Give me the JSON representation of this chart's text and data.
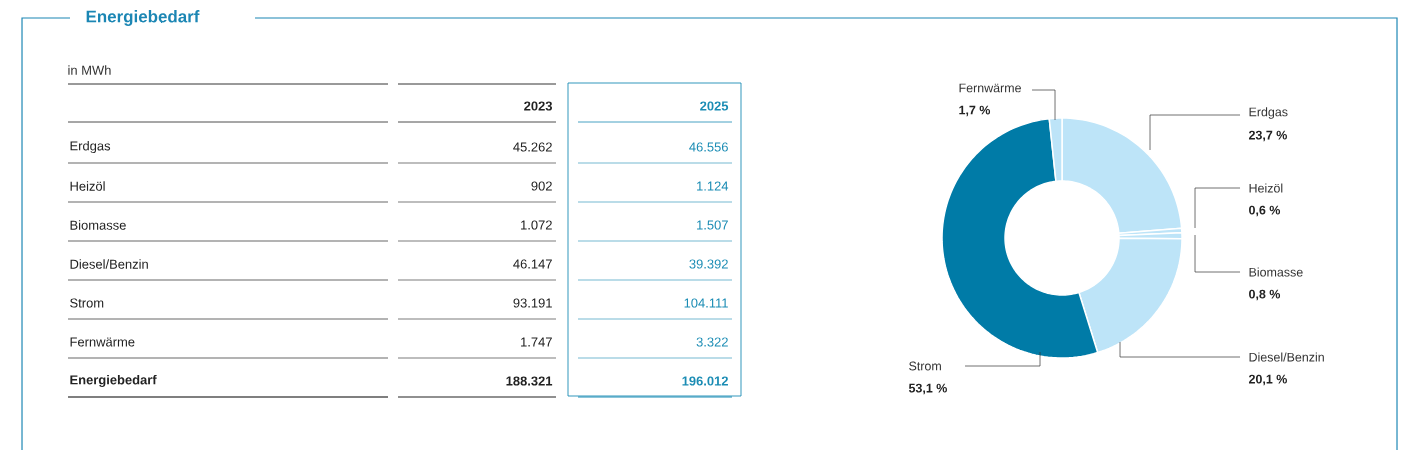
{
  "chart_data": [
    {
      "type": "other",
      "title": "Energiebedarf",
      "subtitle": "in MWh",
      "categories": [
        "Erdgas",
        "Heizöl",
        "Biomasse",
        "Diesel/Benzin",
        "Strom",
        "Fernwärme",
        "Energiebedarf"
      ],
      "series": [
        {
          "name": "2023",
          "color": "#222222",
          "values": [
            45262,
            902,
            1072,
            46147,
            93191,
            1747,
            188321
          ],
          "value_labels": [
            "45.262",
            "902",
            "1.072",
            "46.147",
            "93.191",
            "1.747",
            "188.321"
          ]
        },
        {
          "name": "2025",
          "color": "#1a8cb4",
          "values": [
            46556,
            1124,
            1507,
            39392,
            104111,
            3322,
            196012
          ],
          "value_labels": [
            "46.556",
            "1.124",
            "1.507",
            "39.392",
            "104.111",
            "3.322",
            "196.012"
          ]
        }
      ]
    },
    {
      "type": "donut",
      "categories": [
        "Erdgas",
        "Heizöl",
        "Biomasse",
        "Diesel/Benzin",
        "Strom",
        "Fernwärme"
      ],
      "values": [
        23.7,
        0.6,
        0.8,
        20.1,
        53.1,
        1.7
      ],
      "value_labels": [
        "23,7 %",
        "0,6 %",
        "0,8 %",
        "20,1 %",
        "53,1 %",
        "1,7 %"
      ],
      "colors": [
        "#bde4f8",
        "#bde4f8",
        "#bde4f8",
        "#bde4f8",
        "#007ba7",
        "#bde4f8"
      ]
    }
  ]
}
